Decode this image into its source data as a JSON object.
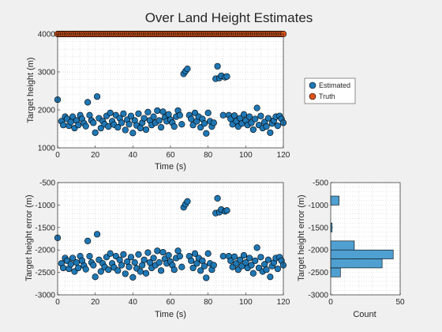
{
  "chart_data": [
    {
      "type": "scatter",
      "panel": "top-left",
      "title": "Over Land Height Estimates",
      "xlabel": "Time (s)",
      "ylabel": "Target height (m)",
      "xlim": [
        0,
        120
      ],
      "ylim": [
        1000,
        4000
      ],
      "xticks": [
        0,
        20,
        40,
        60,
        80,
        100,
        120
      ],
      "yticks": [
        1000,
        2000,
        3000,
        4000
      ],
      "grid": "major and minor dotted",
      "legend": {
        "placement": "right, outside axes",
        "entries": [
          "Estimated",
          "Truth"
        ]
      },
      "series": [
        {
          "name": "Estimated",
          "color": "#1f77b4",
          "points": [
            [
              0,
              2270
            ],
            [
              2,
              1700
            ],
            [
              3,
              1600
            ],
            [
              4,
              1820
            ],
            [
              5,
              1760
            ],
            [
              6,
              1580
            ],
            [
              7,
              1680
            ],
            [
              8,
              1820
            ],
            [
              9,
              1520
            ],
            [
              10,
              1720
            ],
            [
              11,
              1600
            ],
            [
              12,
              1860
            ],
            [
              13,
              1760
            ],
            [
              14,
              1650
            ],
            [
              15,
              1570
            ],
            [
              16,
              2200
            ],
            [
              17,
              1860
            ],
            [
              18,
              1720
            ],
            [
              19,
              1660
            ],
            [
              20,
              1400
            ],
            [
              21,
              2350
            ],
            [
              22,
              1780
            ],
            [
              23,
              1520
            ],
            [
              24,
              1700
            ],
            [
              25,
              1620
            ],
            [
              26,
              1840
            ],
            [
              27,
              1560
            ],
            [
              28,
              1920
            ],
            [
              29,
              1700
            ],
            [
              30,
              1610
            ],
            [
              31,
              1860
            ],
            [
              32,
              1540
            ],
            [
              33,
              1780
            ],
            [
              34,
              1660
            ],
            [
              35,
              1900
            ],
            [
              36,
              1470
            ],
            [
              37,
              1740
            ],
            [
              38,
              1620
            ],
            [
              39,
              1840
            ],
            [
              40,
              1390
            ],
            [
              41,
              1720
            ],
            [
              42,
              1590
            ],
            [
              43,
              1900
            ],
            [
              44,
              1520
            ],
            [
              45,
              1660
            ],
            [
              46,
              1780
            ],
            [
              47,
              1480
            ],
            [
              48,
              1940
            ],
            [
              49,
              1720
            ],
            [
              50,
              1600
            ],
            [
              51,
              1820
            ],
            [
              52,
              1660
            ],
            [
              53,
              1980
            ],
            [
              54,
              1720
            ],
            [
              55,
              1540
            ],
            [
              56,
              1950
            ],
            [
              57,
              1800
            ],
            [
              58,
              1700
            ],
            [
              59,
              1880
            ],
            [
              60,
              1740
            ],
            [
              61,
              1660
            ],
            [
              62,
              1560
            ],
            [
              63,
              1820
            ],
            [
              64,
              1980
            ],
            [
              65,
              1860
            ],
            [
              66,
              1620
            ],
            [
              67,
              2950
            ],
            [
              68,
              3020
            ],
            [
              69,
              3080
            ],
            [
              70,
              1860
            ],
            [
              71,
              1760
            ],
            [
              72,
              1600
            ],
            [
              73,
              1920
            ],
            [
              74,
              1700
            ],
            [
              75,
              1820
            ],
            [
              76,
              1540
            ],
            [
              77,
              1760
            ],
            [
              78,
              1640
            ],
            [
              79,
              1380
            ],
            [
              80,
              1920
            ],
            [
              81,
              1700
            ],
            [
              82,
              1560
            ],
            [
              83,
              1660
            ],
            [
              84,
              2820
            ],
            [
              85,
              3150
            ],
            [
              86,
              2840
            ],
            [
              87,
              2900
            ],
            [
              88,
              1860
            ],
            [
              89,
              2860
            ],
            [
              90,
              2880
            ],
            [
              91,
              1860
            ],
            [
              92,
              1760
            ],
            [
              93,
              1620
            ],
            [
              94,
              1850
            ],
            [
              95,
              1700
            ],
            [
              96,
              1560
            ],
            [
              97,
              1780
            ],
            [
              98,
              1640
            ],
            [
              99,
              1880
            ],
            [
              100,
              1720
            ],
            [
              101,
              1600
            ],
            [
              102,
              1820
            ],
            [
              103,
              1660
            ],
            [
              104,
              1480
            ],
            [
              105,
              1760
            ],
            [
              106,
              2050
            ],
            [
              107,
              1600
            ],
            [
              108,
              1840
            ],
            [
              109,
              1520
            ],
            [
              110,
              1680
            ],
            [
              111,
              1560
            ],
            [
              112,
              1780
            ],
            [
              113,
              1400
            ],
            [
              114,
              1640
            ],
            [
              115,
              1720
            ],
            [
              116,
              1820
            ],
            [
              117,
              1580
            ],
            [
              118,
              1840
            ],
            [
              119,
              1760
            ],
            [
              120,
              1660
            ]
          ]
        },
        {
          "name": "Truth",
          "color": "#d95319",
          "x_start": 0,
          "x_end": 120,
          "x_step": 1,
          "y": 4000
        }
      ]
    },
    {
      "type": "scatter",
      "panel": "bottom-left",
      "xlabel": "Time (s)",
      "ylabel": "Target height error (m)",
      "xlim": [
        0,
        120
      ],
      "ylim": [
        -3000,
        -500
      ],
      "xticks": [
        0,
        20,
        40,
        60,
        80,
        100,
        120
      ],
      "yticks": [
        -3000,
        -2500,
        -2000,
        -1500,
        -1000,
        -500
      ],
      "grid": "major and minor dotted",
      "series": [
        {
          "color": "#1f77b4",
          "derived_from": "Estimated minus Truth"
        }
      ]
    },
    {
      "type": "bar",
      "orientation": "horizontal",
      "panel": "bottom-right",
      "xlabel": "Count",
      "ylabel": "Target height error (m)",
      "xlim": [
        0,
        50
      ],
      "ylim": [
        -3000,
        -500
      ],
      "xticks": [
        0,
        50
      ],
      "yticks": [
        -3000,
        -2500,
        -2000,
        -1500,
        -1000,
        -500
      ],
      "grid": "major and minor dotted",
      "color": "#4f9fd1",
      "bin_edges": [
        -2600,
        -2400,
        -2200,
        -2000,
        -1800,
        -1600,
        -1400,
        -1200,
        -1000,
        -800
      ],
      "counts": [
        7,
        37,
        45,
        17,
        0,
        1,
        0,
        0,
        6,
        2
      ]
    }
  ]
}
